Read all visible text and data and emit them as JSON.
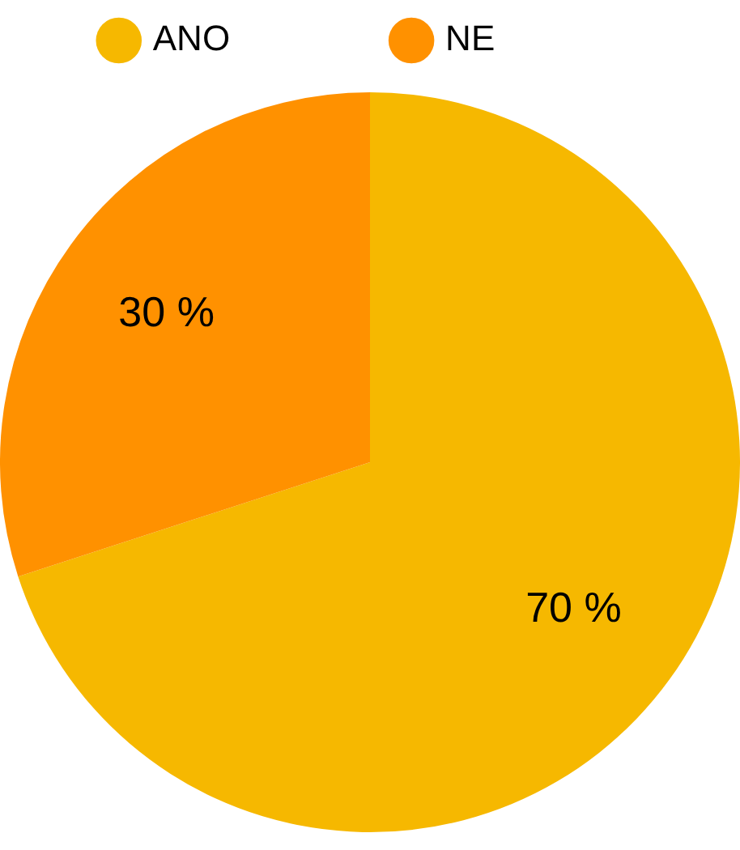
{
  "chart_data": {
    "type": "pie",
    "categories": [
      "ANO",
      "NE"
    ],
    "values": [
      70,
      30
    ],
    "colors": [
      "#f6b800",
      "#ff9100"
    ],
    "value_labels": [
      "70 %",
      "30 %"
    ],
    "legend": "top"
  }
}
